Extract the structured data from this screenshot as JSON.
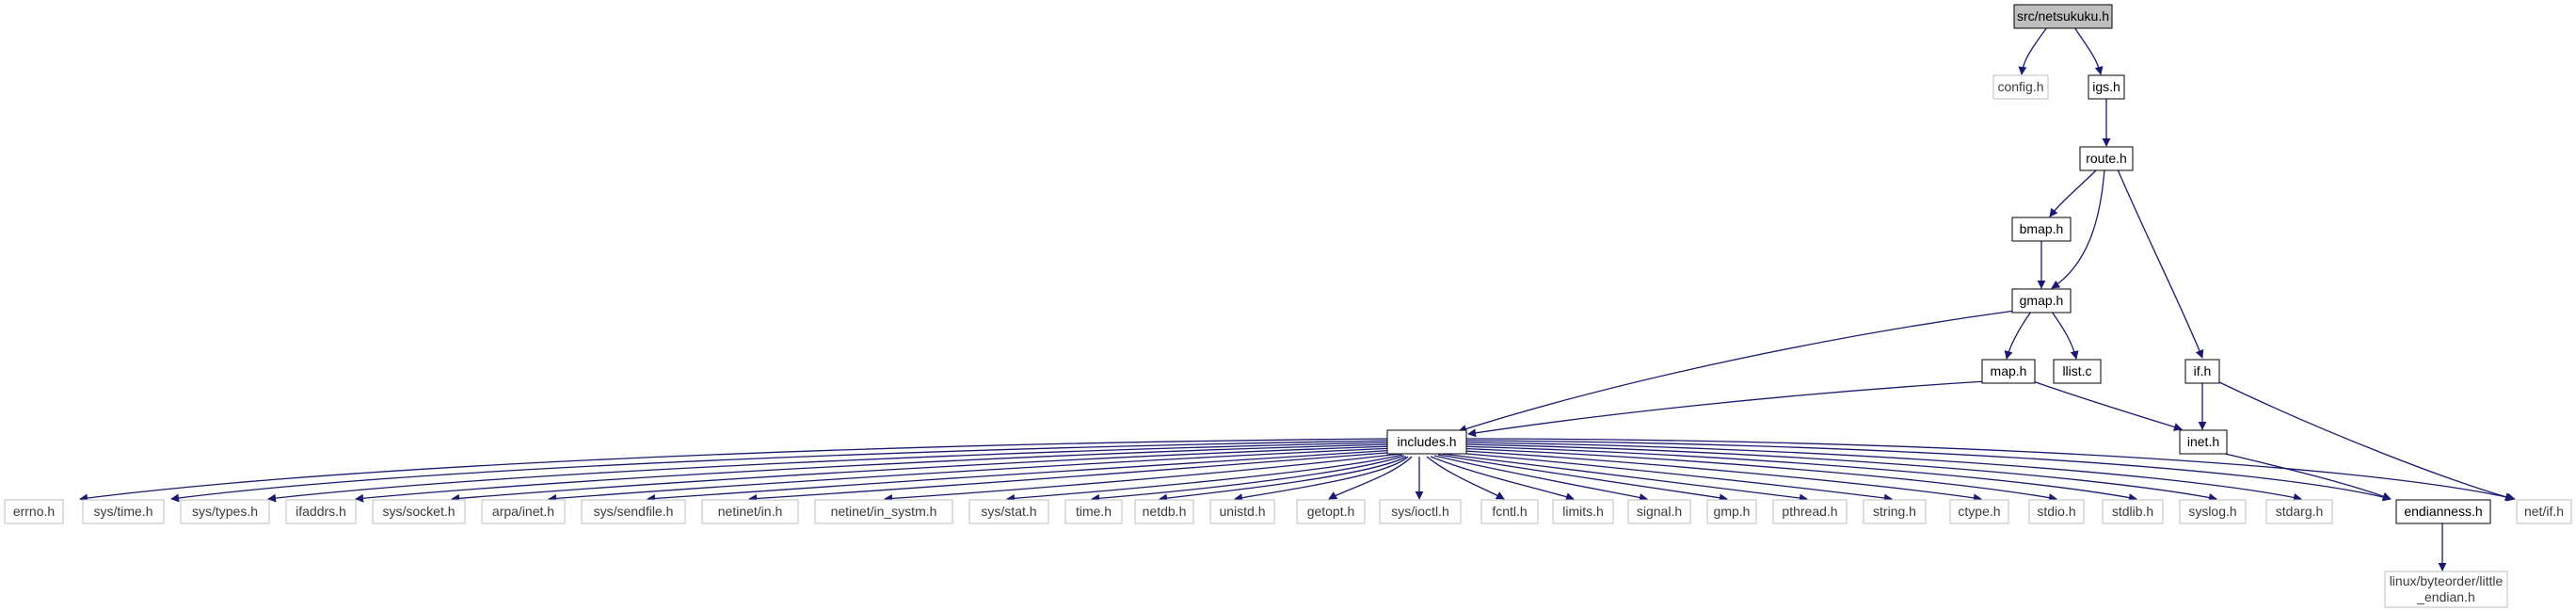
{
  "diagram": {
    "colors": {
      "edge": "#191970",
      "node_border": "#000000",
      "external_border": "#bfbfbf",
      "root_fill": "#bfbfbf",
      "node_fill": "#ffffff"
    },
    "nodes": {
      "netsukuku": "src/netsukuku.h",
      "config": "config.h",
      "igs": "igs.h",
      "route": "route.h",
      "bmap": "bmap.h",
      "gmap": "gmap.h",
      "map": "map.h",
      "llist": "llist.c",
      "if": "if.h",
      "inet": "inet.h",
      "includes": "includes.h",
      "errno": "errno.h",
      "sys_time": "sys/time.h",
      "sys_types": "sys/types.h",
      "ifaddrs": "ifaddrs.h",
      "sys_socket": "sys/socket.h",
      "arpa_inet": "arpa/inet.h",
      "sys_sendfile": "sys/sendfile.h",
      "netinet_in": "netinet/in.h",
      "netinet_in_systm": "netinet/in_systm.h",
      "sys_stat": "sys/stat.h",
      "time": "time.h",
      "netdb": "netdb.h",
      "unistd": "unistd.h",
      "getopt": "getopt.h",
      "sys_ioctl": "sys/ioctl.h",
      "fcntl": "fcntl.h",
      "limits": "limits.h",
      "signal": "signal.h",
      "gmp": "gmp.h",
      "pthread": "pthread.h",
      "string": "string.h",
      "ctype": "ctype.h",
      "stdio": "stdio.h",
      "stdlib": "stdlib.h",
      "syslog": "syslog.h",
      "stdarg": "stdarg.h",
      "endianness": "endianness.h",
      "net_if": "net/if.h",
      "little_endian_1": "linux/byteorder/little",
      "little_endian_2": "_endian.h"
    }
  }
}
